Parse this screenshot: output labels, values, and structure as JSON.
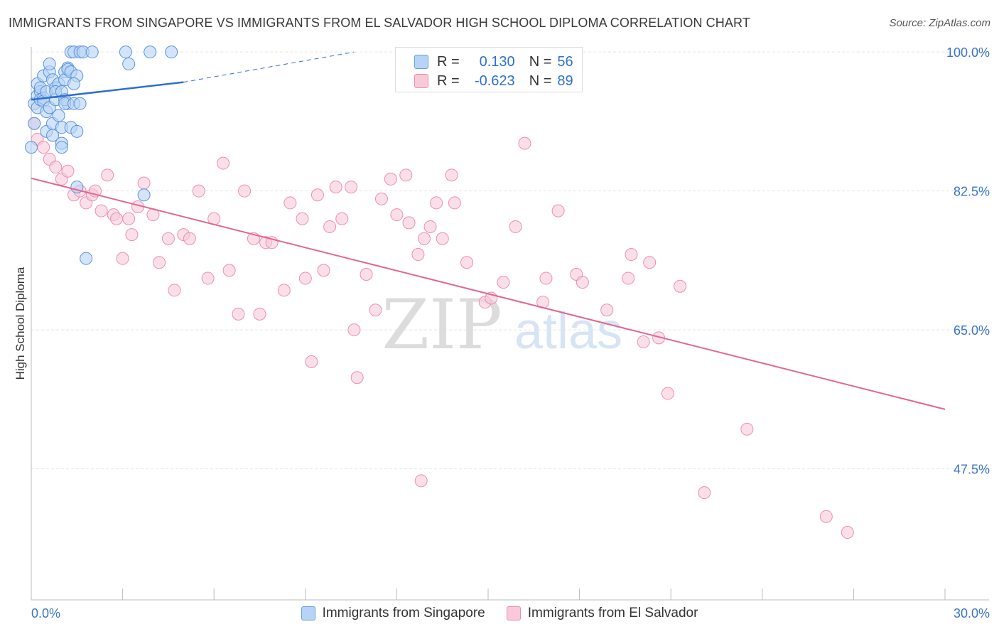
{
  "title": "IMMIGRANTS FROM SINGAPORE VS IMMIGRANTS FROM EL SALVADOR HIGH SCHOOL DIPLOMA CORRELATION CHART",
  "source": "Source: ZipAtlas.com",
  "watermark": {
    "zip": "ZIP",
    "atlas": "atlas"
  },
  "colors": {
    "blue_fill": "#b7d3f5",
    "blue_stroke": "#5b93dc",
    "blue_line": "#2f6fd0",
    "pink_fill": "#f9c9d8",
    "pink_stroke": "#ec8fb0",
    "pink_line": "#e2668f",
    "tick_label": "#3a74c9",
    "grid": "#e5e5e5"
  },
  "legend": {
    "singapore": {
      "r_label": "R =",
      "r_value": "0.130",
      "n_label": "N =",
      "n_value": "56"
    },
    "el_salvador": {
      "r_label": "R =",
      "r_value": "-0.623",
      "n_label": "N =",
      "n_value": "89"
    }
  },
  "bottom_legend": {
    "singapore": "Immigrants from Singapore",
    "el_salvador": "Immigrants from El Salvador"
  },
  "chart_data": {
    "type": "scatter",
    "title": "IMMIGRANTS FROM SINGAPORE VS IMMIGRANTS FROM EL SALVADOR HIGH SCHOOL DIPLOMA CORRELATION CHART",
    "xlabel": "",
    "ylabel": "High School Diploma",
    "xlim": [
      0,
      30
    ],
    "ylim": [
      31,
      101
    ],
    "x_tick_labels": [
      "0.0%",
      "30.0%"
    ],
    "y_ticks": [
      47.5,
      65.0,
      82.5,
      100.0
    ],
    "y_tick_labels": [
      "47.5%",
      "65.0%",
      "82.5%",
      "100.0%"
    ],
    "grid": true,
    "legend_position": "top-center",
    "series": [
      {
        "name": "Immigrants from Singapore",
        "color": "blue",
        "R": 0.13,
        "N": 56,
        "trend": {
          "x0": 0.0,
          "y0": 94.0,
          "x1": 5.0,
          "y1": 96.2,
          "dash_to_x": 10.6,
          "dash_to_y": 100.0
        },
        "points": [
          [
            0.0,
            88.0
          ],
          [
            0.1,
            93.5
          ],
          [
            0.1,
            91.0
          ],
          [
            0.2,
            94.5
          ],
          [
            0.2,
            96.0
          ],
          [
            0.2,
            93.0
          ],
          [
            0.3,
            95.0
          ],
          [
            0.3,
            94.0
          ],
          [
            0.3,
            95.5
          ],
          [
            0.4,
            94.2
          ],
          [
            0.4,
            97.0
          ],
          [
            0.4,
            93.8
          ],
          [
            0.5,
            95.0
          ],
          [
            0.5,
            92.5
          ],
          [
            0.5,
            90.0
          ],
          [
            0.6,
            97.5
          ],
          [
            0.6,
            98.5
          ],
          [
            0.6,
            93.0
          ],
          [
            0.7,
            96.5
          ],
          [
            0.7,
            91.0
          ],
          [
            0.7,
            89.5
          ],
          [
            0.8,
            94.0
          ],
          [
            0.8,
            95.5
          ],
          [
            0.9,
            96.0
          ],
          [
            0.9,
            92.0
          ],
          [
            0.8,
            95.0
          ],
          [
            1.0,
            88.5
          ],
          [
            1.0,
            90.5
          ],
          [
            1.0,
            88.0
          ],
          [
            1.1,
            97.5
          ],
          [
            1.1,
            96.5
          ],
          [
            1.0,
            95.0
          ],
          [
            1.2,
            98.0
          ],
          [
            1.2,
            97.8
          ],
          [
            1.2,
            93.5
          ],
          [
            1.1,
            94.0
          ],
          [
            1.3,
            97.5
          ],
          [
            1.1,
            93.5
          ],
          [
            1.4,
            93.5
          ],
          [
            1.3,
            100.0
          ],
          [
            1.4,
            100.0
          ],
          [
            1.3,
            90.5
          ],
          [
            1.5,
            90.0
          ],
          [
            1.5,
            97.0
          ],
          [
            1.4,
            96.0
          ],
          [
            1.6,
            100.0
          ],
          [
            1.7,
            100.0
          ],
          [
            1.6,
            93.5
          ],
          [
            1.5,
            83.0
          ],
          [
            1.8,
            74.0
          ],
          [
            2.0,
            100.0
          ],
          [
            3.1,
            100.0
          ],
          [
            3.2,
            98.5
          ],
          [
            3.7,
            82.0
          ],
          [
            3.9,
            100.0
          ],
          [
            4.6,
            100.0
          ]
        ]
      },
      {
        "name": "Immigrants from El Salvador",
        "color": "pink",
        "R": -0.623,
        "N": 89,
        "trend": {
          "x0": 0.0,
          "y0": 84.1,
          "x1": 30.0,
          "y1": 55.0
        },
        "points": [
          [
            0.1,
            91.0
          ],
          [
            0.2,
            89.0
          ],
          [
            0.4,
            88.0
          ],
          [
            0.6,
            86.5
          ],
          [
            0.8,
            85.5
          ],
          [
            1.0,
            84.0
          ],
          [
            1.2,
            85.0
          ],
          [
            1.4,
            82.0
          ],
          [
            1.6,
            82.5
          ],
          [
            1.8,
            81.0
          ],
          [
            2.0,
            82.0
          ],
          [
            2.1,
            82.5
          ],
          [
            2.3,
            80.0
          ],
          [
            2.5,
            84.5
          ],
          [
            2.7,
            79.5
          ],
          [
            2.8,
            79.0
          ],
          [
            3.0,
            74.0
          ],
          [
            3.2,
            79.0
          ],
          [
            3.3,
            77.0
          ],
          [
            3.5,
            80.5
          ],
          [
            3.7,
            83.5
          ],
          [
            4.0,
            79.5
          ],
          [
            4.2,
            73.5
          ],
          [
            4.5,
            76.5
          ],
          [
            4.7,
            70.0
          ],
          [
            5.0,
            77.0
          ],
          [
            5.2,
            76.5
          ],
          [
            5.5,
            82.5
          ],
          [
            5.8,
            71.5
          ],
          [
            6.0,
            79.0
          ],
          [
            6.3,
            86.0
          ],
          [
            6.5,
            72.5
          ],
          [
            6.8,
            67.0
          ],
          [
            7.0,
            82.5
          ],
          [
            7.3,
            76.5
          ],
          [
            7.5,
            67.0
          ],
          [
            7.7,
            76.0
          ],
          [
            7.9,
            76.0
          ],
          [
            8.3,
            70.0
          ],
          [
            8.5,
            81.0
          ],
          [
            8.9,
            79.0
          ],
          [
            9.0,
            71.5
          ],
          [
            9.2,
            61.0
          ],
          [
            9.4,
            82.0
          ],
          [
            9.6,
            72.5
          ],
          [
            9.8,
            78.0
          ],
          [
            10.0,
            83.0
          ],
          [
            10.2,
            79.0
          ],
          [
            10.5,
            83.0
          ],
          [
            10.6,
            65.0
          ],
          [
            10.7,
            59.0
          ],
          [
            11.0,
            72.0
          ],
          [
            11.3,
            67.5
          ],
          [
            11.5,
            81.5
          ],
          [
            11.8,
            84.0
          ],
          [
            12.0,
            79.5
          ],
          [
            12.3,
            84.5
          ],
          [
            12.4,
            78.5
          ],
          [
            12.7,
            74.5
          ],
          [
            12.8,
            46.0
          ],
          [
            12.9,
            76.5
          ],
          [
            13.1,
            78.0
          ],
          [
            13.3,
            81.0
          ],
          [
            13.5,
            76.5
          ],
          [
            13.8,
            84.5
          ],
          [
            13.9,
            81.0
          ],
          [
            14.3,
            73.5
          ],
          [
            14.9,
            68.5
          ],
          [
            15.1,
            69.0
          ],
          [
            15.5,
            71.0
          ],
          [
            15.9,
            78.0
          ],
          [
            16.2,
            88.5
          ],
          [
            16.8,
            68.5
          ],
          [
            16.9,
            71.5
          ],
          [
            17.3,
            80.0
          ],
          [
            17.9,
            72.0
          ],
          [
            18.1,
            71.0
          ],
          [
            18.9,
            67.5
          ],
          [
            19.6,
            71.5
          ],
          [
            19.7,
            74.5
          ],
          [
            20.1,
            63.5
          ],
          [
            20.3,
            73.5
          ],
          [
            20.6,
            64.0
          ],
          [
            20.9,
            57.0
          ],
          [
            21.3,
            70.5
          ],
          [
            22.1,
            44.5
          ],
          [
            23.5,
            52.5
          ],
          [
            26.1,
            41.5
          ],
          [
            26.8,
            39.5
          ]
        ]
      }
    ]
  }
}
